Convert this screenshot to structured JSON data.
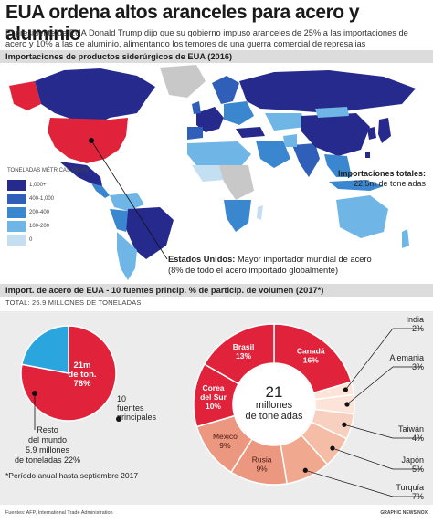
{
  "header": {
    "title": "EUA ordena altos aranceles para acero y aluminio",
    "intro": "El presidente de EUA Donald Trump dijo que su gobierno impuso aranceles de 25% a las importaciones de acero y 10% a las de aluminio, alimentando los temores de una guerra comercial de represalias"
  },
  "map": {
    "heading": "Importaciones de productos siderúrgicos de EUA (2016)",
    "legend_title": "TONELADAS MÉTRICAS (000S)",
    "legend": [
      {
        "label": "1,000+",
        "color": "#262a8c"
      },
      {
        "label": "400-1,000",
        "color": "#2f5fb8"
      },
      {
        "label": "200-400",
        "color": "#3a86cf"
      },
      {
        "label": "100-200",
        "color": "#6fb6e6"
      },
      {
        "label": "0",
        "color": "#c4def2"
      }
    ],
    "totals_title": "Importaciones totales:",
    "totals_value": "22.5m de toneladas",
    "us_note_bold": "Estados Unidos:",
    "us_note_text": " Mayor importador mundial de acero (8% de todo el acero importado globalmente)",
    "colors": {
      "usa": "#e0223a",
      "no_data": "#c8c8c8",
      "ocean": "#ffffff"
    }
  },
  "chart_section": {
    "heading": "Import. de acero de EUA - 10 fuentes princip. % de particip. de volumen (2017*)",
    "total_line": "TOTAL: 26.9 MILLONES DE TONELADAS",
    "small_pie_main_label": "21m de ton. 78%",
    "small_pie_rest_label": "Resto del mundo 5.9 millones de toneladas 22%",
    "ten_sources_label": "10 fuentes principales",
    "donut_center": "21 millones de toneladas",
    "footnote": "*Período anual hasta septiembre 2017",
    "source": "Fuentes: AFP, International Trade Administration",
    "credit": "GRAPHIC NEWS/NOX"
  },
  "chart_data": [
    {
      "type": "pie",
      "title": "",
      "slices": [
        {
          "label": "21m de ton.",
          "value": 78,
          "color": "#e0223a"
        },
        {
          "label": "Resto del mundo",
          "value": 22,
          "color": "#2aa5de"
        }
      ]
    },
    {
      "type": "pie",
      "title": "",
      "center_text": "21 millones de toneladas",
      "slices": [
        {
          "label": "Canadá",
          "value": 16,
          "color": "#e0223a"
        },
        {
          "label": "India",
          "value": 2,
          "color": "#fde3d8"
        },
        {
          "label": "Alemania",
          "value": 3,
          "color": "#fde3d8"
        },
        {
          "label": "Taiwán",
          "value": 4,
          "color": "#f8d0c0"
        },
        {
          "label": "Japón",
          "value": 5,
          "color": "#f5bca6"
        },
        {
          "label": "Turquía",
          "value": 7,
          "color": "#f0a98f"
        },
        {
          "label": "Rusia",
          "value": 9,
          "color": "#ec9780"
        },
        {
          "label": "México",
          "value": 9,
          "color": "#ec9780"
        },
        {
          "label": "Corea del Sur",
          "value": 10,
          "color": "#e0223a"
        },
        {
          "label": "Brasil",
          "value": 13,
          "color": "#e0223a"
        }
      ]
    }
  ]
}
